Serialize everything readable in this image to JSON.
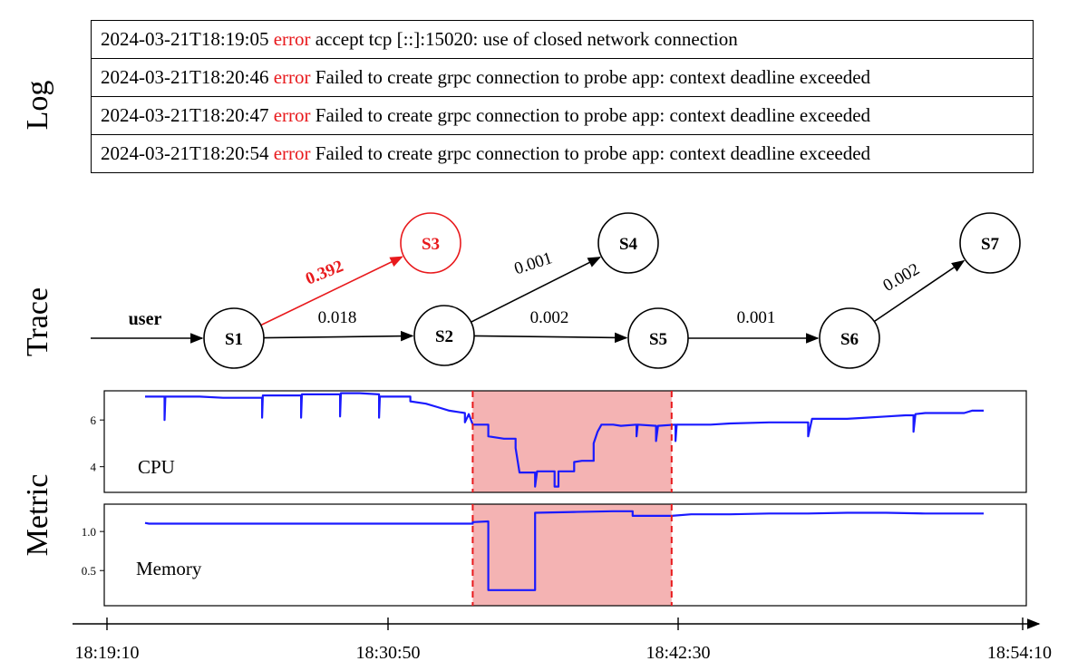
{
  "labels": {
    "log": "Log",
    "trace": "Trace",
    "metric": "Metric"
  },
  "log": [
    {
      "ts": "2024-03-21T18:19:05",
      "level": "error",
      "msg": "accept tcp [::]:15020: use of closed network connection"
    },
    {
      "ts": "2024-03-21T18:20:46",
      "level": "error",
      "msg": "Failed to create grpc connection to probe app: context deadline exceeded"
    },
    {
      "ts": "2024-03-21T18:20:47",
      "level": "error",
      "msg": "Failed to create grpc connection to probe app: context deadline exceeded"
    },
    {
      "ts": "2024-03-21T18:20:54",
      "level": "error",
      "msg": "Failed to create grpc connection to probe app: context deadline exceeded"
    }
  ],
  "trace": {
    "entry_label": "user",
    "nodes": [
      {
        "id": "S1",
        "label": "S1",
        "highlight": false
      },
      {
        "id": "S2",
        "label": "S2",
        "highlight": false
      },
      {
        "id": "S3",
        "label": "S3",
        "highlight": true
      },
      {
        "id": "S4",
        "label": "S4",
        "highlight": false
      },
      {
        "id": "S5",
        "label": "S5",
        "highlight": false
      },
      {
        "id": "S6",
        "label": "S6",
        "highlight": false
      },
      {
        "id": "S7",
        "label": "S7",
        "highlight": false
      }
    ],
    "edges": [
      {
        "from": "S1",
        "to": "S3",
        "weight": "0.392",
        "highlight": true
      },
      {
        "from": "S1",
        "to": "S2",
        "weight": "0.018",
        "highlight": false
      },
      {
        "from": "S2",
        "to": "S4",
        "weight": "0.001",
        "highlight": false
      },
      {
        "from": "S2",
        "to": "S5",
        "weight": "0.002",
        "highlight": false
      },
      {
        "from": "S5",
        "to": "S6",
        "weight": "0.001",
        "highlight": false
      },
      {
        "from": "S6",
        "to": "S7",
        "weight": "0.002",
        "highlight": false
      }
    ]
  },
  "chart_data": [
    {
      "type": "line",
      "annotation": "CPU",
      "series": [
        {
          "values": [
            [
              0,
              7.0
            ],
            [
              5,
              7.0
            ],
            [
              5,
              6.0
            ],
            [
              5.2,
              7.0
            ],
            [
              14,
              7.0
            ],
            [
              20,
              6.95
            ],
            [
              30,
              6.95
            ],
            [
              30,
              6.1
            ],
            [
              30.2,
              7.05
            ],
            [
              40,
              7.05
            ],
            [
              40,
              6.1
            ],
            [
              40.2,
              7.1
            ],
            [
              50,
              7.1
            ],
            [
              50,
              6.15
            ],
            [
              50.2,
              7.15
            ],
            [
              55,
              7.15
            ],
            [
              60,
              7.1
            ],
            [
              60,
              6.1
            ],
            [
              60.2,
              7.0
            ],
            [
              68,
              7.0
            ],
            [
              68,
              6.8
            ],
            [
              72,
              6.7
            ],
            [
              75,
              6.55
            ],
            [
              78,
              6.4
            ],
            [
              82,
              6.3
            ],
            [
              82,
              5.9
            ],
            [
              83,
              6.25
            ],
            [
              84,
              5.8
            ],
            [
              88,
              5.8
            ],
            [
              88,
              5.3
            ],
            [
              92,
              5.2
            ],
            [
              95,
              5.2
            ],
            [
              95,
              4.8
            ],
            [
              96,
              3.75
            ],
            [
              100,
              3.75
            ],
            [
              100,
              3.15
            ],
            [
              100.5,
              3.8
            ],
            [
              105,
              3.8
            ],
            [
              105,
              3.15
            ],
            [
              106,
              3.15
            ],
            [
              106,
              3.8
            ],
            [
              110,
              3.8
            ],
            [
              110,
              4.2
            ],
            [
              112,
              4.25
            ],
            [
              115,
              4.25
            ],
            [
              115,
              5.0
            ],
            [
              116,
              5.5
            ],
            [
              117,
              5.8
            ],
            [
              120,
              5.8
            ],
            [
              122,
              5.75
            ],
            [
              126,
              5.8
            ],
            [
              126,
              5.3
            ],
            [
              126.3,
              5.8
            ],
            [
              131,
              5.75
            ],
            [
              131,
              5.1
            ],
            [
              131.5,
              5.75
            ],
            [
              136,
              5.8
            ],
            [
              136,
              5.1
            ],
            [
              136.3,
              5.8
            ],
            [
              145,
              5.8
            ],
            [
              150,
              5.85
            ],
            [
              160,
              5.9
            ],
            [
              170,
              5.9
            ],
            [
              170,
              5.3
            ],
            [
              171,
              6.05
            ],
            [
              180,
              6.05
            ],
            [
              185,
              6.1
            ],
            [
              190,
              6.15
            ],
            [
              195,
              6.2
            ],
            [
              197,
              6.2
            ],
            [
              197,
              5.5
            ],
            [
              197.5,
              6.25
            ],
            [
              200,
              6.3
            ],
            [
              210,
              6.3
            ],
            [
              212,
              6.4
            ],
            [
              215,
              6.4
            ]
          ]
        }
      ],
      "xlim": [
        0,
        215
      ],
      "ylim": [
        2.9,
        7.25
      ],
      "yticks": [
        "6",
        "4"
      ],
      "ytick_values": [
        6,
        4
      ],
      "anomaly_window": [
        84,
        135
      ]
    },
    {
      "type": "line",
      "annotation": "Memory",
      "series": [
        {
          "values": [
            [
              0,
              1.11
            ],
            [
              1,
              1.1
            ],
            [
              40,
              1.1
            ],
            [
              80,
              1.1
            ],
            [
              84,
              1.1
            ],
            [
              84,
              1.12
            ],
            [
              88,
              1.13
            ],
            [
              88,
              0.25
            ],
            [
              100,
              0.25
            ],
            [
              100,
              1.24
            ],
            [
              110,
              1.25
            ],
            [
              120,
              1.26
            ],
            [
              125,
              1.26
            ],
            [
              125,
              1.2
            ],
            [
              135,
              1.2
            ],
            [
              140,
              1.22
            ],
            [
              150,
              1.22
            ],
            [
              160,
              1.23
            ],
            [
              170,
              1.23
            ],
            [
              180,
              1.24
            ],
            [
              190,
              1.24
            ],
            [
              200,
              1.23
            ],
            [
              215,
              1.23
            ]
          ]
        }
      ],
      "xlim": [
        0,
        215
      ],
      "ylim": [
        0.05,
        1.35
      ],
      "yticks": [
        "1.0",
        "0.5"
      ],
      "ytick_values": [
        1.0,
        0.5
      ],
      "anomaly_window": [
        84,
        135
      ]
    }
  ],
  "time_axis": {
    "ticks": [
      "18:19:10",
      "18:30:50",
      "18:42:30",
      "18:54:10"
    ]
  },
  "colors": {
    "error": "#e8191c",
    "series": "#1a1aff",
    "anomaly_fill": "#f4b3b3",
    "anomaly_line": "#e8191c"
  }
}
